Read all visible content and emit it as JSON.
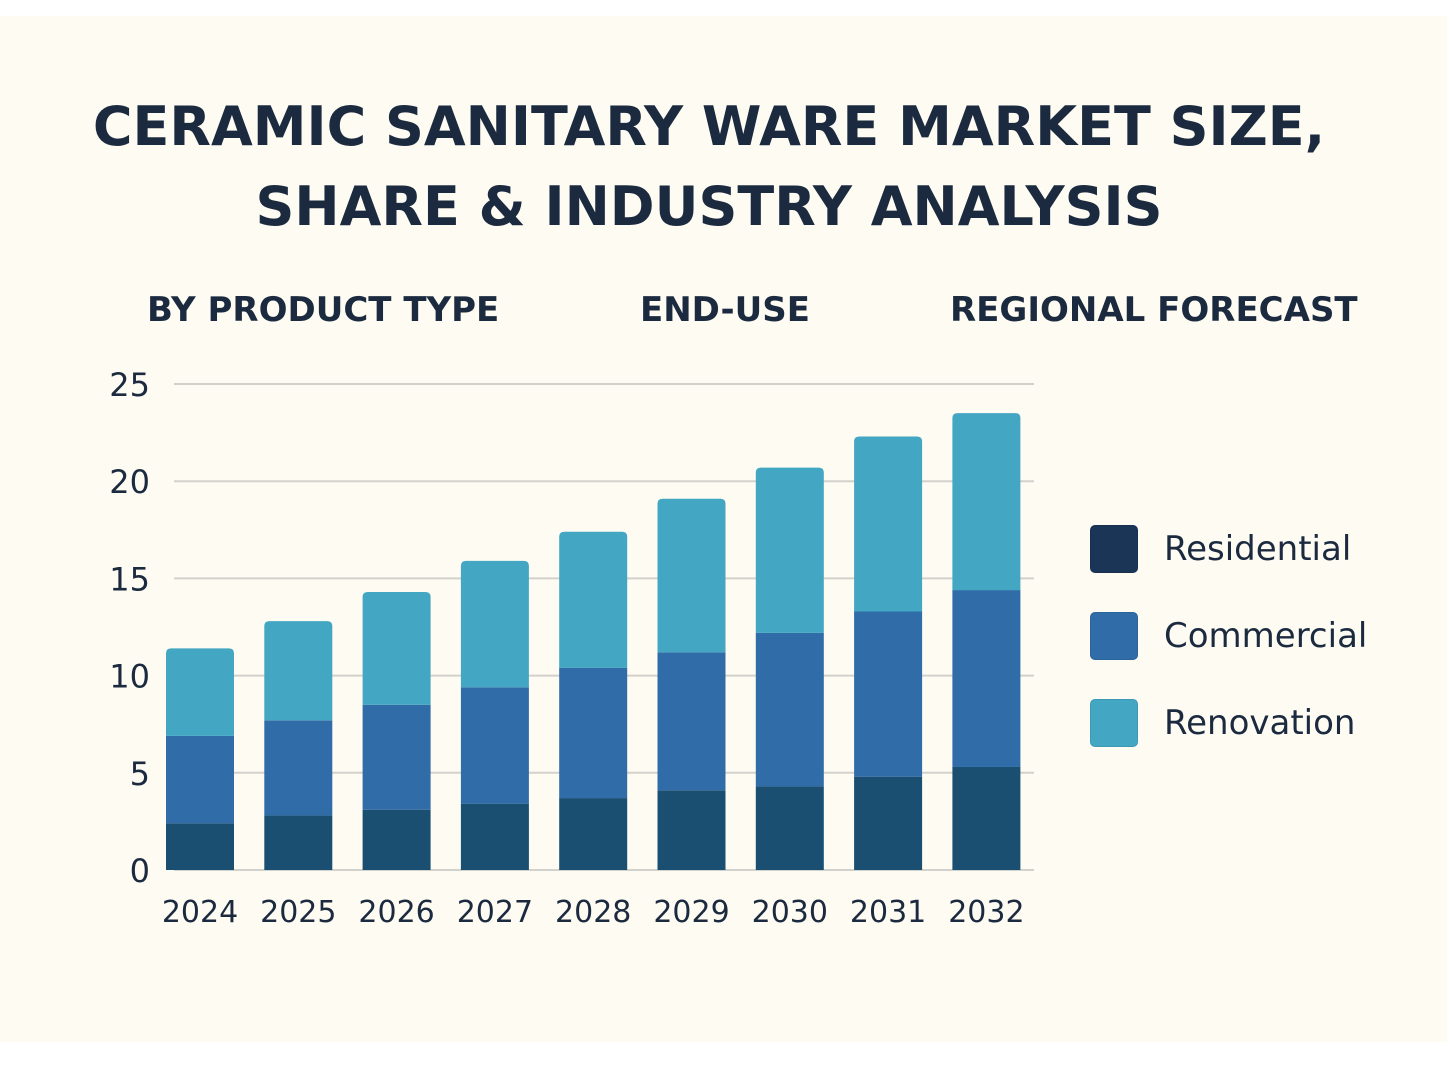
{
  "title_lines": [
    "CERAMIC SANITARY WARE MARKET SIZE,",
    "SHARE & INDUSTRY ANALYSIS"
  ],
  "subheadings": [
    "BY PRODUCT TYPE",
    "END-USE",
    "REGIONAL FORECAST"
  ],
  "chart_data": {
    "type": "bar",
    "stacked": true,
    "title": "CERAMIC SANITARY WARE MARKET SIZE, SHARE & INDUSTRY ANALYSIS",
    "xlabel": "",
    "ylabel": "",
    "categories": [
      "2024",
      "2025",
      "2026",
      "2027",
      "2028",
      "2029",
      "2030",
      "2031",
      "2032"
    ],
    "series": [
      {
        "name": "Residential",
        "color": "#1b4f72",
        "legend_color": "#1a3556",
        "values": [
          2.4,
          2.8,
          3.1,
          3.4,
          3.7,
          4.1,
          4.3,
          4.8,
          5.3
        ]
      },
      {
        "name": "Commercial",
        "color": "#2f6ca8",
        "legend_color": "#2f6ca8",
        "values": [
          4.5,
          4.9,
          5.4,
          6.0,
          6.7,
          7.1,
          7.9,
          8.5,
          9.1
        ]
      },
      {
        "name": "Renovation",
        "color": "#43a7c3",
        "legend_color": "#43a7c3",
        "values": [
          4.5,
          5.1,
          5.8,
          6.5,
          7.0,
          7.9,
          8.5,
          9.0,
          9.1
        ]
      }
    ],
    "totals": [
      11.4,
      12.8,
      14.3,
      15.9,
      17.4,
      19.1,
      20.7,
      22.3,
      23.5
    ],
    "yticks": [
      "0",
      "5",
      "10",
      "15",
      "20",
      "25"
    ],
    "ylim": [
      0,
      25
    ],
    "grid": true,
    "legend_position": "right"
  }
}
